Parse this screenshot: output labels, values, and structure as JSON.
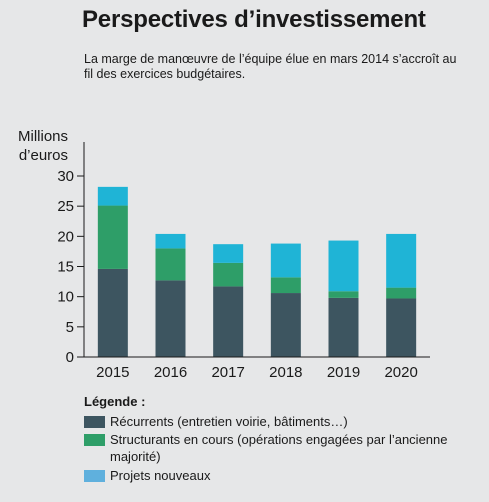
{
  "title": "Perspectives d’investissement",
  "subtitle": "La marge de manœuvre de l’équipe élue en mars 2014 s’accroît au fil des exercices budgétaires.",
  "colors": {
    "recurrents": "#3d5560",
    "structurants": "#2e9e68",
    "nouveaux": "#1fb4d6",
    "legend_nouveaux": "#5fb0dd",
    "axis": "#1a1a1a",
    "background": "#e6e7e8"
  },
  "chart_data": {
    "type": "bar",
    "stacked": true,
    "ylabel_line1": "Millions",
    "ylabel_line2": "d’euros",
    "ylim": [
      0,
      30
    ],
    "yticks": [
      0,
      5,
      10,
      15,
      20,
      25,
      30
    ],
    "categories": [
      "2015",
      "2016",
      "2017",
      "2018",
      "2019",
      "2020"
    ],
    "series": [
      {
        "key": "recurrents",
        "values": [
          14.6,
          12.7,
          11.7,
          10.6,
          9.8,
          9.7
        ]
      },
      {
        "key": "structurants",
        "values": [
          10.5,
          5.3,
          3.9,
          2.6,
          1.1,
          1.8
        ]
      },
      {
        "key": "nouveaux",
        "values": [
          3.1,
          2.4,
          3.1,
          5.6,
          8.4,
          8.9
        ]
      }
    ]
  },
  "legend": {
    "title": "Légende :",
    "items": [
      {
        "label": "Récurrents (entretien voirie, bâtiments…)"
      },
      {
        "label": "Structurants en cours (opérations engagées par l’ancienne majorité)"
      },
      {
        "label": "Projets nouveaux"
      }
    ]
  }
}
